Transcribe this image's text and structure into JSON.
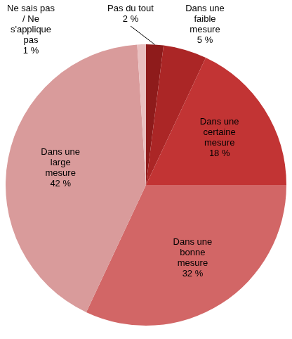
{
  "chart_data": {
    "type": "pie",
    "categories": [
      "Pas du tout",
      "Dans une faible mesure",
      "Dans une certaine mesure",
      "Dans une bonne mesure",
      "Dans une large mesure",
      "Ne sais pas / Ne s'applique pas"
    ],
    "values": [
      2,
      5,
      18,
      32,
      42,
      1
    ],
    "value_labels": [
      "2 %",
      "5 %",
      "18 %",
      "32 %",
      "42 %",
      "1 %"
    ],
    "colors": [
      "#8e1b1b",
      "#ab2626",
      "#c23434",
      "#d26666",
      "#d99b9b",
      "#e9c0c0"
    ],
    "data_labels": true
  }
}
